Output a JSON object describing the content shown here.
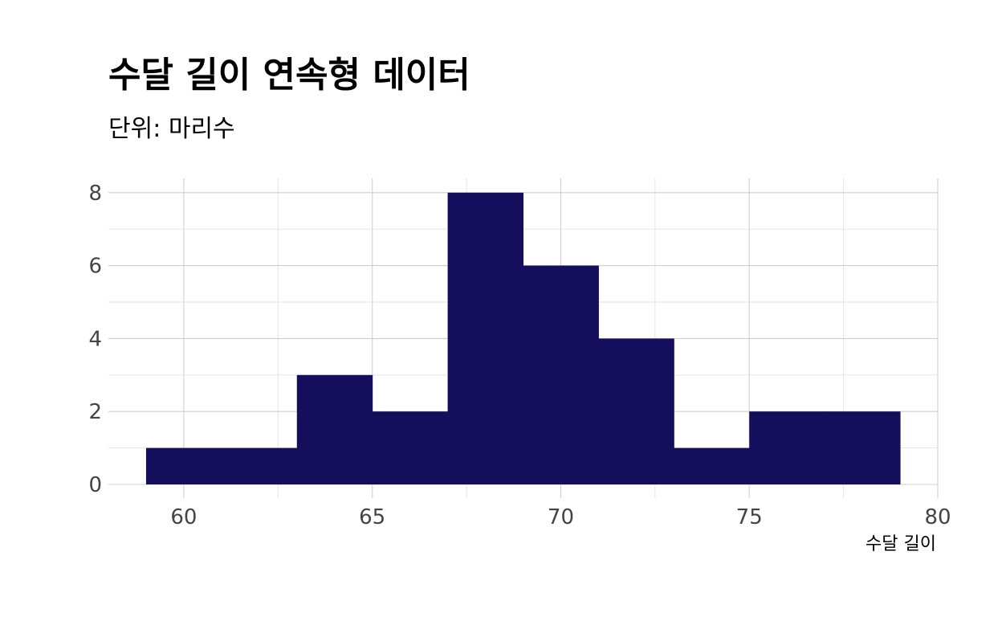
{
  "chart_data": {
    "type": "bar",
    "title": "수달 길이 연속형 데이터",
    "subtitle": "단위: 마리수",
    "xlabel": "수달 길이",
    "ylabel": "",
    "bins": [
      {
        "x0": 59,
        "x1": 61,
        "count": 1
      },
      {
        "x0": 61,
        "x1": 63,
        "count": 1
      },
      {
        "x0": 63,
        "x1": 65,
        "count": 3
      },
      {
        "x0": 65,
        "x1": 67,
        "count": 2
      },
      {
        "x0": 67,
        "x1": 69,
        "count": 8
      },
      {
        "x0": 69,
        "x1": 71,
        "count": 6
      },
      {
        "x0": 71,
        "x1": 73,
        "count": 4
      },
      {
        "x0": 73,
        "x1": 75,
        "count": 1
      },
      {
        "x0": 75,
        "x1": 77,
        "count": 2
      },
      {
        "x0": 77,
        "x1": 79,
        "count": 2
      }
    ],
    "xlim": [
      58,
      80
    ],
    "ylim": [
      0,
      8.4
    ],
    "xticks": [
      60,
      65,
      70,
      75,
      80
    ],
    "yticks": [
      0,
      2,
      4,
      6,
      8
    ],
    "bar_color": "#140e5c",
    "grid": true,
    "legend": "none"
  }
}
